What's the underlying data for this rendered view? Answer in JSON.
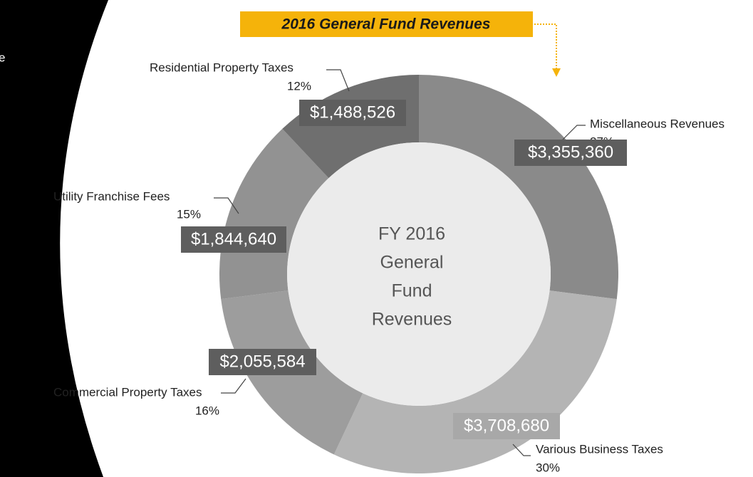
{
  "chart_data": {
    "type": "pie",
    "title": "2016 General Fund Revenues",
    "side_text": "e",
    "center_label_lines": [
      "FY 2016",
      "General",
      "Fund",
      "Revenues"
    ],
    "categories": [
      "Miscellaneous Revenues",
      "Various Business Taxes",
      "Commercial Property Taxes",
      "Utility Franchise Fees",
      "Residential Property Taxes"
    ],
    "values": [
      27,
      30,
      16,
      15,
      12
    ],
    "value_labels": [
      "27%",
      "30%",
      "16%",
      "15%",
      "12%"
    ],
    "amount_labels": [
      "$3,355,360",
      "$3,708,680",
      "$2,055,584",
      "$1,844,640",
      "$1,488,526"
    ],
    "colors": [
      "#8a8a8a",
      "#b4b4b4",
      "#9d9d9d",
      "#929292",
      "#6f6f6f"
    ],
    "donut": true
  }
}
